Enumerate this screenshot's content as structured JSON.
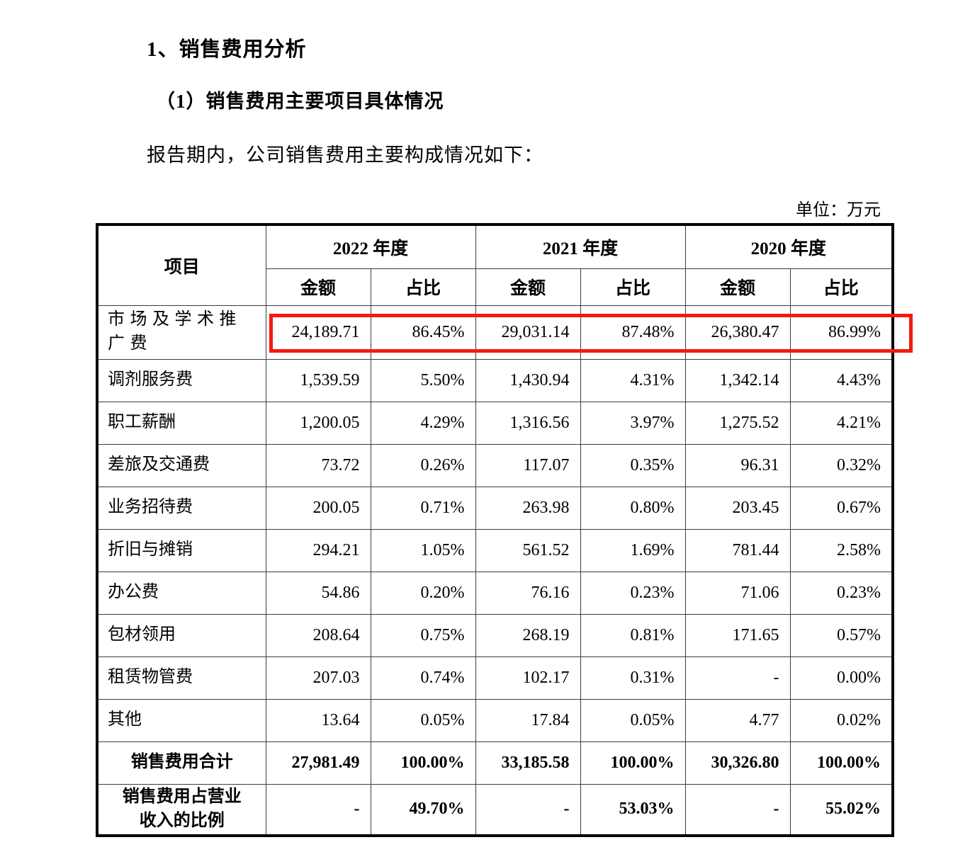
{
  "document": {
    "section_title": "1、销售费用分析",
    "subsection_title": "（1）销售费用主要项目具体情况",
    "intro_text": "报告期内，公司销售费用主要构成情况如下：",
    "unit_label": "单位：万元"
  },
  "table": {
    "item_header": "项目",
    "year_headers": [
      "2022 年度",
      "2021 年度",
      "2020 年度"
    ],
    "sub_header_amount": "金额",
    "sub_header_ratio": "占比",
    "rows": [
      {
        "item": "市场及学术推广费",
        "values": [
          "24,189.71",
          "86.45%",
          "29,031.14",
          "87.48%",
          "26,380.47",
          "86.99%"
        ],
        "highlight": true,
        "spread": true
      },
      {
        "item": "调剂服务费",
        "values": [
          "1,539.59",
          "5.50%",
          "1,430.94",
          "4.31%",
          "1,342.14",
          "4.43%"
        ]
      },
      {
        "item": "职工薪酬",
        "values": [
          "1,200.05",
          "4.29%",
          "1,316.56",
          "3.97%",
          "1,275.52",
          "4.21%"
        ]
      },
      {
        "item": "差旅及交通费",
        "values": [
          "73.72",
          "0.26%",
          "117.07",
          "0.35%",
          "96.31",
          "0.32%"
        ]
      },
      {
        "item": "业务招待费",
        "values": [
          "200.05",
          "0.71%",
          "263.98",
          "0.80%",
          "203.45",
          "0.67%"
        ]
      },
      {
        "item": "折旧与摊销",
        "values": [
          "294.21",
          "1.05%",
          "561.52",
          "1.69%",
          "781.44",
          "2.58%"
        ]
      },
      {
        "item": "办公费",
        "values": [
          "54.86",
          "0.20%",
          "76.16",
          "0.23%",
          "71.06",
          "0.23%"
        ]
      },
      {
        "item": "包材领用",
        "values": [
          "208.64",
          "0.75%",
          "268.19",
          "0.81%",
          "171.65",
          "0.57%"
        ]
      },
      {
        "item": "租赁物管费",
        "values": [
          "207.03",
          "0.74%",
          "102.17",
          "0.31%",
          "-",
          "0.00%"
        ]
      },
      {
        "item": "其他",
        "values": [
          "13.64",
          "0.05%",
          "17.84",
          "0.05%",
          "4.77",
          "0.02%"
        ]
      },
      {
        "item": "销售费用合计",
        "values": [
          "27,981.49",
          "100.00%",
          "33,185.58",
          "100.00%",
          "30,326.80",
          "100.00%"
        ],
        "bold": true,
        "center": true
      },
      {
        "item": "销售费用占营业\n收入的比例",
        "values": [
          "-",
          "49.70%",
          "-",
          "53.03%",
          "-",
          "55.02%"
        ],
        "bold": true,
        "center": true,
        "last": true
      }
    ]
  },
  "annotation": {
    "type": "red-highlight-rectangle",
    "highlighted_row": "市场及学术推广费",
    "color": "#f5190f"
  }
}
